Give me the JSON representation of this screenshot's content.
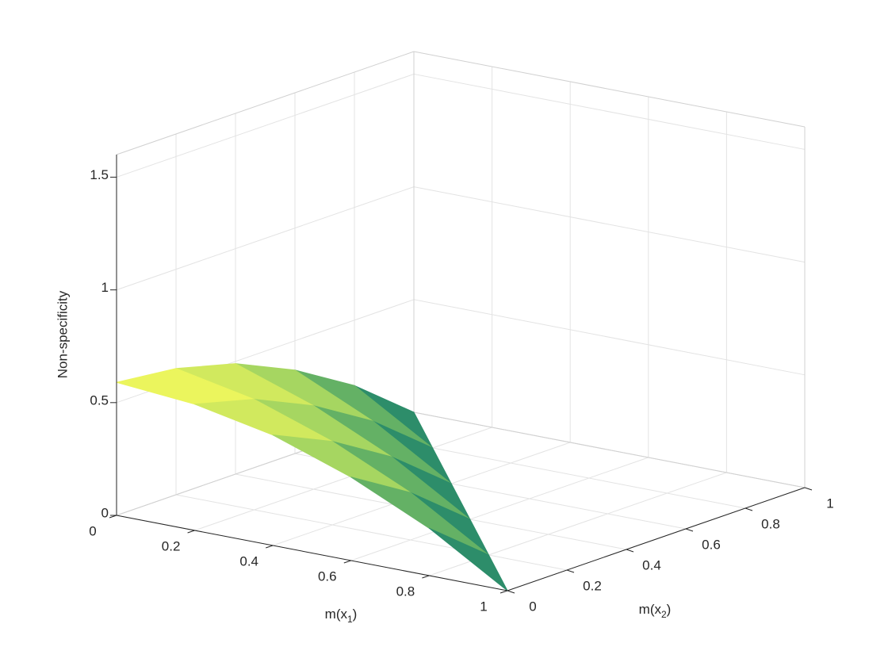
{
  "chart_data": {
    "type": "surface",
    "xlabel": [
      "m(x",
      "1",
      ")"
    ],
    "ylabel": [
      "m(x",
      "2",
      ")"
    ],
    "zlabel": "Non-specificity",
    "x": [
      0,
      0.2,
      0.4,
      0.6,
      0.8,
      1
    ],
    "y": [
      0,
      0.2,
      0.4,
      0.6,
      0.8,
      1
    ],
    "z": [
      [
        0.59,
        0.56,
        0.49,
        0.37,
        0.21,
        0
      ],
      [
        0.56,
        0.49,
        0.37,
        0.21,
        0,
        null
      ],
      [
        0.49,
        0.37,
        0.21,
        0,
        null,
        null
      ],
      [
        0.37,
        0.21,
        0,
        null,
        null,
        null
      ],
      [
        0.21,
        0,
        null,
        null,
        null,
        null
      ],
      [
        0,
        null,
        null,
        null,
        null,
        null
      ]
    ],
    "xlim": [
      0,
      1
    ],
    "ylim": [
      0,
      1
    ],
    "zlim": [
      0,
      1.6
    ],
    "xticks": [
      0,
      0.2,
      0.4,
      0.6,
      0.8,
      1
    ],
    "yticks": [
      0,
      0.2,
      0.4,
      0.6,
      0.8,
      1
    ],
    "zticks": [
      0,
      0.5,
      1,
      1.5
    ],
    "grid": true,
    "colormap": [
      "#0e7a6c",
      "#8fcc62",
      "#f9fb5c"
    ]
  }
}
